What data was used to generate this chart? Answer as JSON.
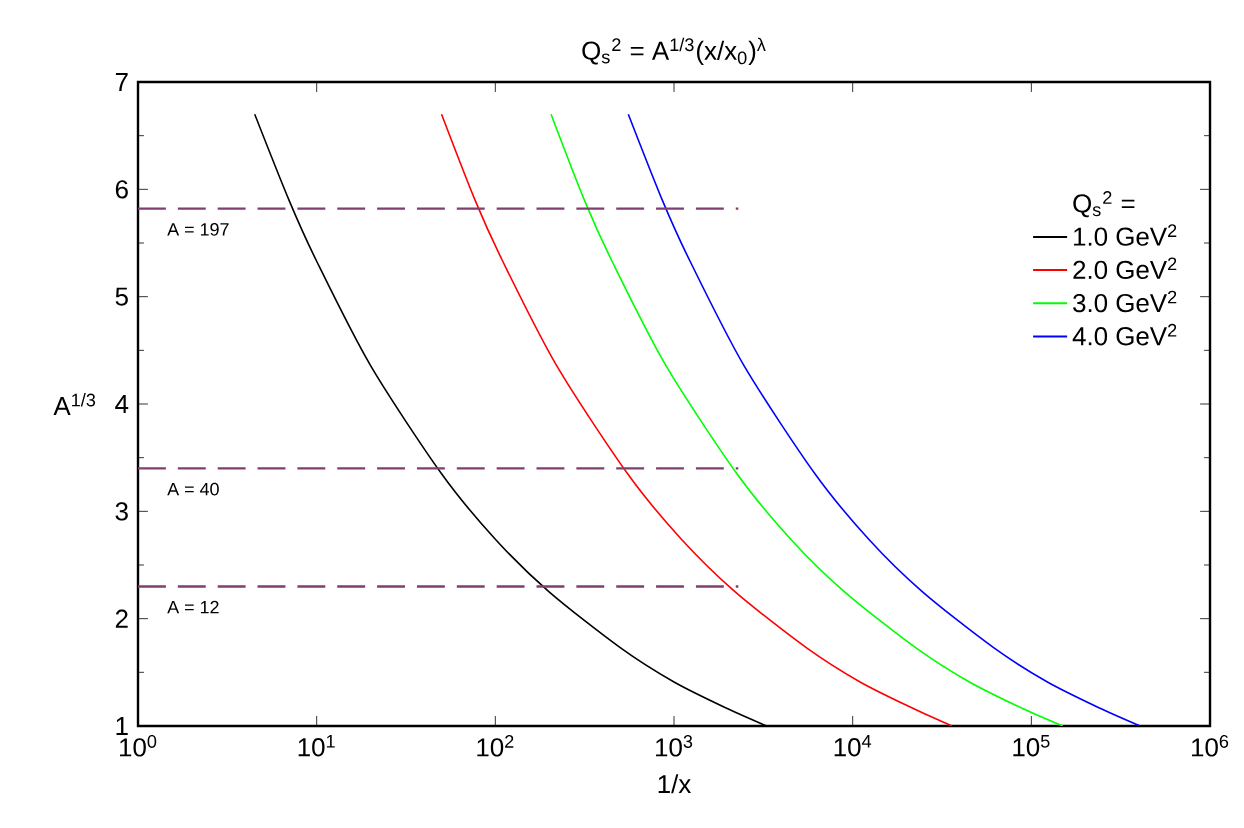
{
  "chart_data": {
    "type": "line",
    "title": "Q$_{s}$$^{2}$ = A$^{1/3}$(x/x$_{0}$)$^{λ}$",
    "xlabel": "1/x",
    "ylabel": "A$^{1/3}$",
    "legend_title": "Q$_{s}$$^{2}$ =",
    "log": "x",
    "xlim": [
      1,
      1000000
    ],
    "ylim": [
      1,
      7
    ],
    "xticks": [
      {
        "value": 1,
        "label": "10$^{0}$"
      },
      {
        "value": 10,
        "label": "10$^{1}$"
      },
      {
        "value": 100,
        "label": "10$^{2}$"
      },
      {
        "value": 1000,
        "label": "10$^{3}$"
      },
      {
        "value": 10000,
        "label": "10$^{4}$"
      },
      {
        "value": 100000,
        "label": "10$^{5}$"
      },
      {
        "value": 1000000,
        "label": "10$^{6}$"
      }
    ],
    "yticks": [
      1,
      2,
      3,
      4,
      5,
      6,
      7
    ],
    "legend": "top right",
    "marker": "none",
    "line_style": "solid",
    "series": [
      {
        "name": "1.0 GeV$^{2}$",
        "color": "#000000",
        "x": [
          4.5,
          7,
          10,
          20,
          50,
          100,
          200,
          500,
          1000,
          2000,
          3300
        ],
        "values": [
          6.7,
          5.9,
          5.33,
          4.36,
          3.35,
          2.74,
          2.25,
          1.73,
          1.41,
          1.16,
          1.0
        ]
      },
      {
        "name": "2.0 GeV$^{2}$",
        "color": "#ff0000",
        "x": [
          50,
          77,
          110,
          220,
          550,
          1100,
          2200,
          5500,
          11000,
          22000,
          36000
        ],
        "values": [
          6.7,
          5.9,
          5.33,
          4.36,
          3.35,
          2.74,
          2.25,
          1.73,
          1.41,
          1.16,
          1.0
        ]
      },
      {
        "name": "3.0 GeV$^{2}$",
        "color": "#00ff00",
        "x": [
          205,
          315,
          450,
          900,
          2250,
          4500,
          9000,
          22500,
          45000,
          90000,
          150000
        ],
        "values": [
          6.7,
          5.9,
          5.33,
          4.36,
          3.35,
          2.74,
          2.25,
          1.73,
          1.41,
          1.16,
          1.0
        ]
      },
      {
        "name": "4.0 GeV$^{2}$",
        "color": "#0000ff",
        "x": [
          555,
          860,
          1230,
          2460,
          6150,
          12300,
          24600,
          61500,
          123000,
          246000,
          406000
        ],
        "values": [
          6.7,
          5.9,
          5.33,
          4.36,
          3.35,
          2.74,
          2.25,
          1.73,
          1.41,
          1.16,
          1.0
        ]
      }
    ],
    "ref_lines": [
      {
        "axis": "y",
        "value": 5.82,
        "color": "#7f3f6f",
        "line_style": "dashed"
      },
      {
        "axis": "y",
        "value": 3.4,
        "color": "#7f3f6f",
        "line_style": "dashed"
      },
      {
        "axis": "y",
        "value": 2.3,
        "color": "#7f3f6f",
        "line_style": "dashed"
      }
    ],
    "annotations": [
      {
        "text": "A = 197",
        "y": 5.82
      },
      {
        "text": "A = 40",
        "y": 3.4
      },
      {
        "text": "A = 12",
        "y": 2.3
      }
    ]
  }
}
